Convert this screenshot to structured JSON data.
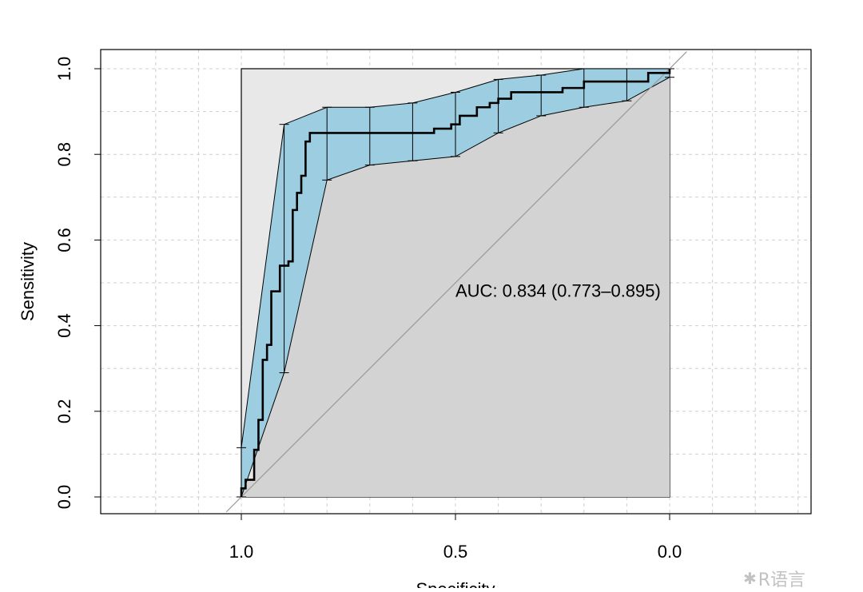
{
  "chart_data": {
    "type": "line",
    "title": "",
    "xlabel": "Specificity",
    "ylabel": "Sensitivity",
    "xlim": [
      1.25,
      -0.33
    ],
    "ylim": [
      -0.04,
      1.04
    ],
    "x_reversed": true,
    "x_ticks": [
      1.0,
      0.5,
      0.0
    ],
    "x_tick_labels": [
      "1.0",
      "0.5",
      "0.0"
    ],
    "y_ticks": [
      0.0,
      0.2,
      0.4,
      0.6,
      0.8,
      1.0
    ],
    "y_tick_labels": [
      "0.0",
      "0.2",
      "0.4",
      "0.6",
      "0.8",
      "1.0"
    ],
    "grid": true,
    "annotation": "AUC: 0.834 (0.773–0.895)",
    "annotation_position": {
      "specificity": 0.5,
      "sensitivity": 0.48
    },
    "roc_curve": {
      "specificity": [
        1.0,
        1.0,
        0.99,
        0.99,
        0.97,
        0.97,
        0.96,
        0.96,
        0.95,
        0.95,
        0.94,
        0.94,
        0.93,
        0.93,
        0.91,
        0.91,
        0.89,
        0.89,
        0.88,
        0.88,
        0.87,
        0.87,
        0.86,
        0.86,
        0.85,
        0.85,
        0.84,
        0.84,
        0.55,
        0.55,
        0.51,
        0.51,
        0.49,
        0.49,
        0.45,
        0.45,
        0.42,
        0.42,
        0.4,
        0.4,
        0.37,
        0.37,
        0.25,
        0.25,
        0.2,
        0.2,
        0.05,
        0.05,
        0.0,
        0.0
      ],
      "sensitivity": [
        0.0,
        0.02,
        0.02,
        0.04,
        0.04,
        0.11,
        0.11,
        0.18,
        0.18,
        0.32,
        0.32,
        0.355,
        0.355,
        0.48,
        0.48,
        0.54,
        0.54,
        0.55,
        0.55,
        0.67,
        0.67,
        0.71,
        0.71,
        0.75,
        0.75,
        0.83,
        0.83,
        0.85,
        0.85,
        0.86,
        0.86,
        0.87,
        0.87,
        0.89,
        0.89,
        0.91,
        0.91,
        0.92,
        0.92,
        0.93,
        0.93,
        0.945,
        0.945,
        0.955,
        0.955,
        0.97,
        0.97,
        0.99,
        0.99,
        1.0
      ]
    },
    "confidence_band": {
      "specificity": [
        1.0,
        0.9,
        0.8,
        0.7,
        0.6,
        0.5,
        0.4,
        0.3,
        0.2,
        0.1,
        0.0
      ],
      "lower": [
        0.0,
        0.29,
        0.74,
        0.775,
        0.785,
        0.795,
        0.85,
        0.89,
        0.91,
        0.925,
        0.98
      ],
      "upper": [
        0.115,
        0.87,
        0.91,
        0.91,
        0.92,
        0.945,
        0.975,
        0.985,
        1.0,
        1.0,
        1.0
      ]
    },
    "diagonal": {
      "from": [
        1.0,
        0.0
      ],
      "to": [
        0.0,
        1.0
      ]
    },
    "colors": {
      "ci_fill": "#9ccde0",
      "auc_area": "#d3d3d3",
      "upper_area": "#e8e8e8",
      "roc_line": "#000000",
      "diagonal": "#9a9a9a",
      "grid": "#cfcfcf",
      "frame": "#000000"
    }
  },
  "watermark": {
    "icon": "wechat-icon",
    "text": "R语言"
  }
}
